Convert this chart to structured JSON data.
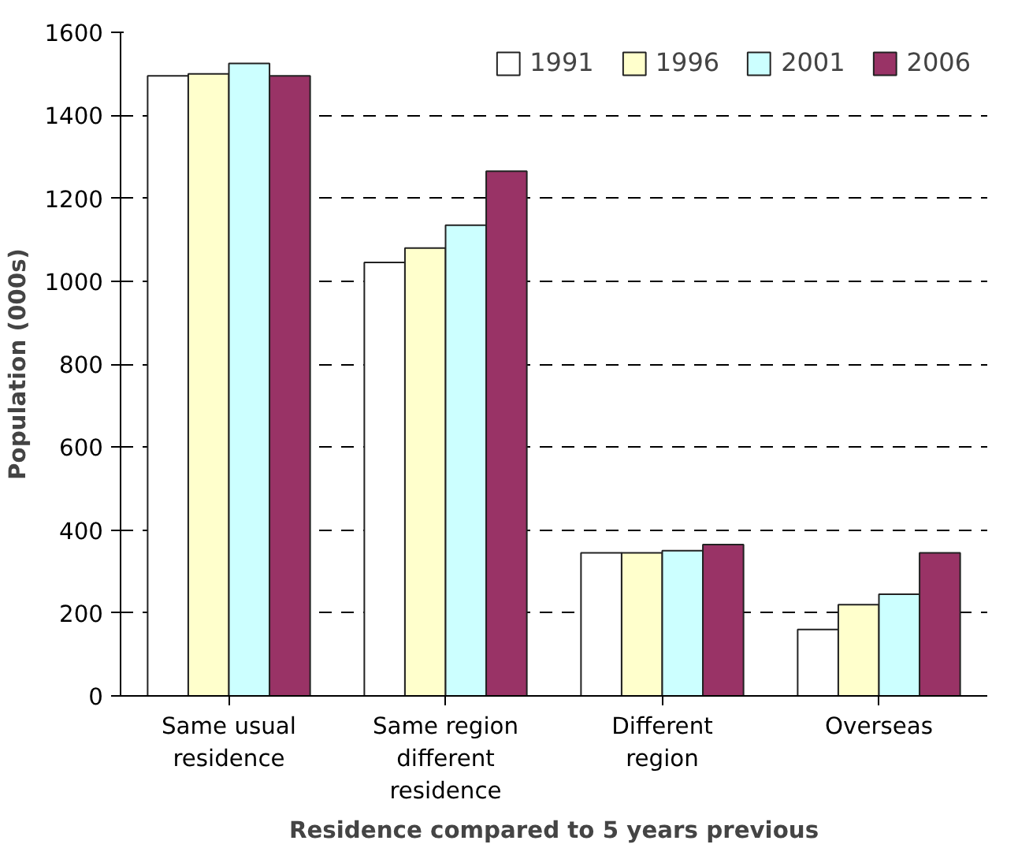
{
  "chart_data": {
    "type": "bar",
    "xlabel": "Residence compared to 5 years previous",
    "ylabel": "Population (000s)",
    "categories": [
      "Same usual\nresidence",
      "Same region\ndifferent\nresidence",
      "Different\nregion",
      "Overseas"
    ],
    "series": [
      {
        "name": "1991",
        "color": "#ffffff",
        "values": [
          1495,
          1045,
          345,
          160
        ]
      },
      {
        "name": "1996",
        "color": "#ffffcc",
        "values": [
          1500,
          1080,
          345,
          220
        ]
      },
      {
        "name": "2001",
        "color": "#ccffff",
        "values": [
          1525,
          1135,
          350,
          245
        ]
      },
      {
        "name": "2006",
        "color": "#993366",
        "values": [
          1495,
          1265,
          365,
          345
        ]
      }
    ],
    "ylim": [
      0,
      1600
    ],
    "yticks": [
      0,
      200,
      400,
      600,
      800,
      1000,
      1200,
      1400,
      1600
    ],
    "grid": "y",
    "legend": "top right"
  }
}
